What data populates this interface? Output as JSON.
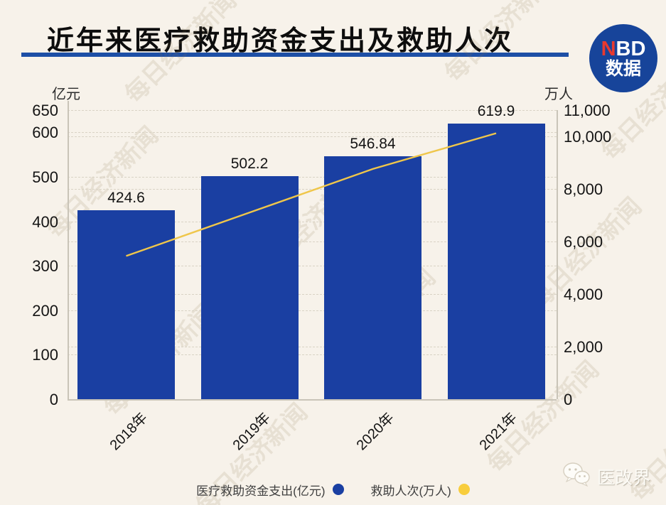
{
  "page": {
    "background_color": "#f7f2ea"
  },
  "header": {
    "title": "近年来医疗救助资金支出及救助人次",
    "underline_color": "#1d4fa6"
  },
  "nbd_badge": {
    "line1_accent": "N",
    "line1_rest": "BD",
    "line2": "数据",
    "bg_color": "#17449a",
    "accent_color": "#e8392f"
  },
  "watermark": {
    "text": "每日经济新闻"
  },
  "footer_brand": {
    "text": "医改界"
  },
  "legend": {
    "items": [
      {
        "label": "医疗救助资金支出(亿元)",
        "color": "#1a3fa2"
      },
      {
        "label": "救助人次(万人)",
        "color": "#f8cd3c"
      }
    ]
  },
  "chart_data": {
    "type": "bar",
    "title": "近年来医疗救助资金支出及救助人次",
    "categories": [
      "2018年",
      "2019年",
      "2020年",
      "2021年"
    ],
    "series": [
      {
        "name": "医疗救助资金支出(亿元)",
        "type": "bar",
        "axis": "left",
        "values": [
          424.6,
          502.2,
          546.84,
          619.9
        ],
        "labels": [
          "424.6",
          "502.2",
          "546.84",
          "619.9"
        ],
        "color": "#1a3fa2"
      },
      {
        "name": "救助人次(万人)",
        "type": "line",
        "axis": "right",
        "values_estimated_from_pixels": true,
        "values": [
          5450,
          7100,
          8760,
          10120
        ],
        "color": "#efc64a"
      }
    ],
    "left_axis": {
      "unit": "亿元",
      "min": 0,
      "max": 650,
      "ticks": [
        {
          "label": "0",
          "value": 0
        },
        {
          "label": "100",
          "value": 100
        },
        {
          "label": "200",
          "value": 200
        },
        {
          "label": "300",
          "value": 300
        },
        {
          "label": "400",
          "value": 400
        },
        {
          "label": "500",
          "value": 500
        },
        {
          "label": "600",
          "value": 600
        },
        {
          "label": "650",
          "value": 650
        }
      ]
    },
    "right_axis": {
      "unit": "万人",
      "min": 0,
      "max": 11000,
      "ticks": [
        {
          "label": "0",
          "value": 0
        },
        {
          "label": "2,000",
          "value": 2000
        },
        {
          "label": "4,000",
          "value": 4000
        },
        {
          "label": "6,000",
          "value": 6000
        },
        {
          "label": "8,000",
          "value": 8000
        },
        {
          "label": "10,000",
          "value": 10000
        },
        {
          "label": "11,000",
          "value": 11000
        }
      ]
    },
    "grid": "horizontal dashed lines for both axes",
    "legend_position": "bottom-center"
  }
}
